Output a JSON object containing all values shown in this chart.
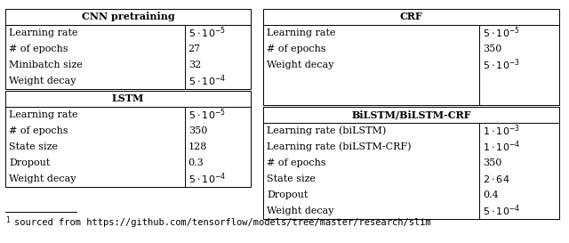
{
  "cnn_title": "CNN pretraining",
  "cnn_rows": [
    [
      "Learning rate",
      "$5 \\cdot 10^{-5}$"
    ],
    [
      "# of epochs",
      "27"
    ],
    [
      "Minibatch size",
      "32"
    ],
    [
      "Weight decay",
      "$5 \\cdot 10^{-4}$"
    ]
  ],
  "lstm_title": "LSTM",
  "lstm_rows": [
    [
      "Learning rate",
      "$5 \\cdot 10^{-5}$"
    ],
    [
      "# of epochs",
      "350"
    ],
    [
      "State size",
      "128"
    ],
    [
      "Dropout",
      "0.3"
    ],
    [
      "Weight decay",
      "$5 \\cdot 10^{-4}$"
    ]
  ],
  "crf_title": "CRF",
  "crf_rows": [
    [
      "Learning rate",
      "$5 \\cdot 10^{-5}$"
    ],
    [
      "# of epochs",
      "350"
    ],
    [
      "Weight decay",
      "$5 \\cdot 10^{-3}$"
    ],
    [
      "",
      ""
    ],
    [
      "",
      ""
    ]
  ],
  "bilstm_title": "BiLSTM/BiLSTM-CRF",
  "bilstm_rows": [
    [
      "Learning rate (biLSTM)",
      "$1 \\cdot 10^{-3}$"
    ],
    [
      "Learning rate (biLSTM-CRF)",
      "$1 \\cdot 10^{-4}$"
    ],
    [
      "# of epochs",
      "350"
    ],
    [
      "State size",
      "$2 \\cdot 64$"
    ],
    [
      "Dropout",
      "0.4"
    ],
    [
      "Weight decay",
      "$5 \\cdot 10^{-4}$"
    ]
  ],
  "bg_color": "white",
  "text_color": "black",
  "font_size": 8.0,
  "lw": 0.7
}
